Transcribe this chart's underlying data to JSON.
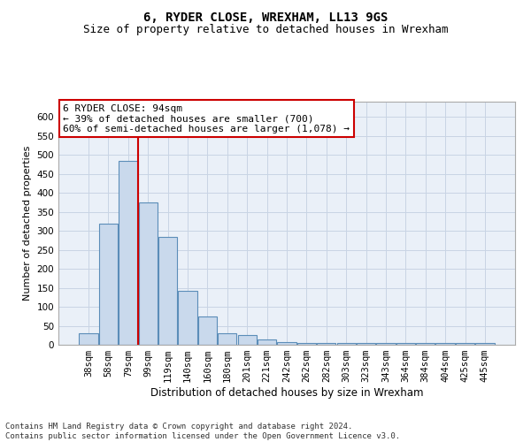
{
  "title": "6, RYDER CLOSE, WREXHAM, LL13 9GS",
  "subtitle": "Size of property relative to detached houses in Wrexham",
  "xlabel": "Distribution of detached houses by size in Wrexham",
  "ylabel": "Number of detached properties",
  "categories": [
    "38sqm",
    "58sqm",
    "79sqm",
    "99sqm",
    "119sqm",
    "140sqm",
    "160sqm",
    "180sqm",
    "201sqm",
    "221sqm",
    "242sqm",
    "262sqm",
    "282sqm",
    "303sqm",
    "323sqm",
    "343sqm",
    "364sqm",
    "384sqm",
    "404sqm",
    "425sqm",
    "445sqm"
  ],
  "values": [
    30,
    320,
    485,
    375,
    285,
    143,
    75,
    30,
    26,
    15,
    6,
    5,
    5,
    5,
    5,
    5,
    5,
    5,
    5,
    5,
    5
  ],
  "bar_color": "#c9d9ec",
  "bar_edge_color": "#5b8db8",
  "bar_edge_width": 0.8,
  "redline_index": 2.5,
  "redline_color": "#cc0000",
  "annotation_text": "6 RYDER CLOSE: 94sqm\n← 39% of detached houses are smaller (700)\n60% of semi-detached houses are larger (1,078) →",
  "ylim": [
    0,
    640
  ],
  "yticks": [
    0,
    50,
    100,
    150,
    200,
    250,
    300,
    350,
    400,
    450,
    500,
    550,
    600
  ],
  "grid_color": "#c8d4e4",
  "background_color": "#eaf0f8",
  "footer_text": "Contains HM Land Registry data © Crown copyright and database right 2024.\nContains public sector information licensed under the Open Government Licence v3.0.",
  "title_fontsize": 10,
  "subtitle_fontsize": 9,
  "xlabel_fontsize": 8.5,
  "ylabel_fontsize": 8,
  "tick_fontsize": 7.5,
  "annotation_fontsize": 8,
  "footer_fontsize": 6.5
}
